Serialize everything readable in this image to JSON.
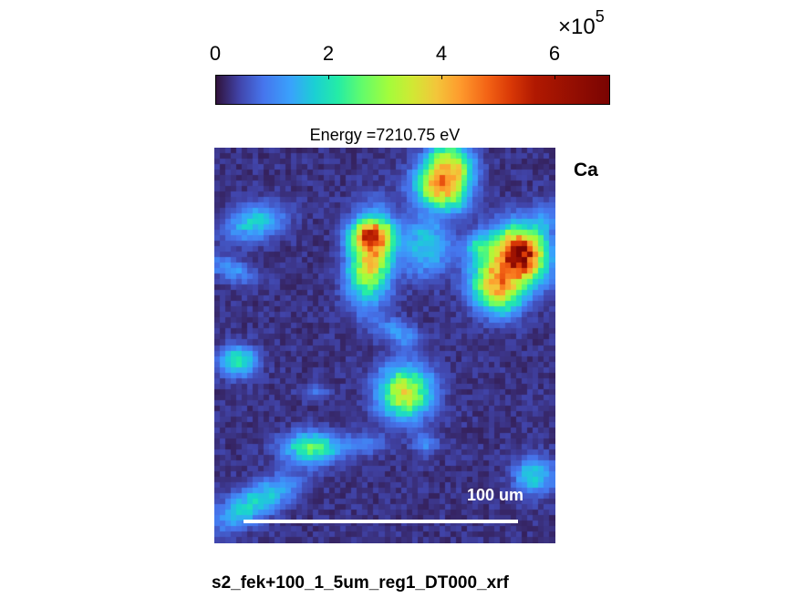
{
  "chart_data": {
    "type": "heatmap",
    "title": "Energy =7210.75 eV",
    "element_label": "Ca",
    "colormap": "turbo",
    "colorbar": {
      "ticks": [
        "0",
        "2",
        "4",
        "6"
      ],
      "tick_values": [
        0,
        2,
        4,
        6
      ],
      "range": [
        0,
        7
      ],
      "multiplier_base": "×10",
      "multiplier_exponent": "5"
    },
    "grid": {
      "cols": 62,
      "rows": 72
    },
    "hotspots": [
      {
        "x": 0.69,
        "y": 0.05,
        "rx": 0.07,
        "ry": 0.06,
        "value": 4.2,
        "angle": 0.3
      },
      {
        "x": 0.66,
        "y": 0.11,
        "rx": 0.08,
        "ry": 0.05,
        "value": 3.6,
        "angle": 0.3
      },
      {
        "x": 0.12,
        "y": 0.19,
        "rx": 0.09,
        "ry": 0.045,
        "value": 1.8,
        "angle": -0.2
      },
      {
        "x": 0.46,
        "y": 0.22,
        "rx": 0.06,
        "ry": 0.035,
        "value": 3.4,
        "angle": 0.0
      },
      {
        "x": 0.46,
        "y": 0.28,
        "rx": 0.065,
        "ry": 0.11,
        "value": 4.3,
        "angle": 0.15
      },
      {
        "x": 0.62,
        "y": 0.25,
        "rx": 0.08,
        "ry": 0.08,
        "value": 1.7,
        "angle": 0.0
      },
      {
        "x": 0.78,
        "y": 0.25,
        "rx": 0.05,
        "ry": 0.04,
        "value": 1.6,
        "angle": 0.0
      },
      {
        "x": 0.9,
        "y": 0.27,
        "rx": 0.08,
        "ry": 0.07,
        "value": 6.6,
        "angle": 0.5
      },
      {
        "x": 0.83,
        "y": 0.35,
        "rx": 0.08,
        "ry": 0.07,
        "value": 4.4,
        "angle": 0.5
      },
      {
        "x": 0.05,
        "y": 0.31,
        "rx": 0.08,
        "ry": 0.03,
        "value": 1.1,
        "angle": 0.3
      },
      {
        "x": 0.54,
        "y": 0.47,
        "rx": 0.07,
        "ry": 0.035,
        "value": 1.1,
        "angle": 0.3
      },
      {
        "x": 0.07,
        "y": 0.54,
        "rx": 0.06,
        "ry": 0.04,
        "value": 2.1,
        "angle": 0.0
      },
      {
        "x": 0.56,
        "y": 0.62,
        "rx": 0.08,
        "ry": 0.07,
        "value": 3.8,
        "angle": 0.0
      },
      {
        "x": 0.29,
        "y": 0.76,
        "rx": 0.09,
        "ry": 0.04,
        "value": 2.6,
        "angle": 0.0
      },
      {
        "x": 0.45,
        "y": 0.75,
        "rx": 0.06,
        "ry": 0.025,
        "value": 0.9,
        "angle": 0.0
      },
      {
        "x": 0.62,
        "y": 0.75,
        "rx": 0.04,
        "ry": 0.03,
        "value": 0.9,
        "angle": 0.0
      },
      {
        "x": 0.94,
        "y": 0.83,
        "rx": 0.06,
        "ry": 0.05,
        "value": 1.8,
        "angle": 0.0
      },
      {
        "x": 0.12,
        "y": 0.9,
        "rx": 0.14,
        "ry": 0.045,
        "value": 1.9,
        "angle": -0.4
      },
      {
        "x": 0.97,
        "y": 0.18,
        "rx": 0.04,
        "ry": 0.05,
        "value": 0.9,
        "angle": 0.0
      },
      {
        "x": 0.3,
        "y": 0.62,
        "rx": 0.05,
        "ry": 0.02,
        "value": 0.7,
        "angle": 0.0
      }
    ],
    "scale_bar_label": "100 um",
    "scale_bar_length_um": 100
  },
  "caption": "s2_fek+100_1_5um_reg1_DT000_xrf"
}
